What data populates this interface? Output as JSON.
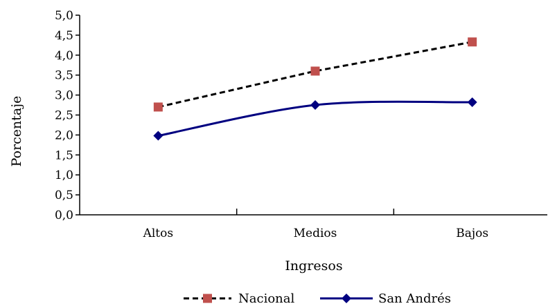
{
  "chart_data": {
    "type": "line",
    "title": "",
    "xlabel": "Ingresos",
    "ylabel": "Porcentaje",
    "categories": [
      "Altos",
      "Medios",
      "Bajos"
    ],
    "ylim": [
      0,
      5
    ],
    "ytick_step": 0.5,
    "ytick_labels": [
      "0,0",
      "0,5",
      "1,0",
      "1,5",
      "2,0",
      "2,5",
      "3,0",
      "3,5",
      "4,0",
      "4,5",
      "5,0"
    ],
    "grid": false,
    "legend_position": "bottom",
    "series": [
      {
        "name": "Nacional",
        "values": [
          2.7,
          3.6,
          4.33
        ],
        "color": "#000000",
        "marker_color": "#c0504d",
        "marker": "square",
        "line_style": "dashed",
        "smooth": false
      },
      {
        "name": "San Andrés",
        "values": [
          1.98,
          2.75,
          2.82
        ],
        "color": "#000080",
        "marker_color": "#000080",
        "marker": "diamond",
        "line_style": "solid",
        "smooth": true
      }
    ]
  }
}
